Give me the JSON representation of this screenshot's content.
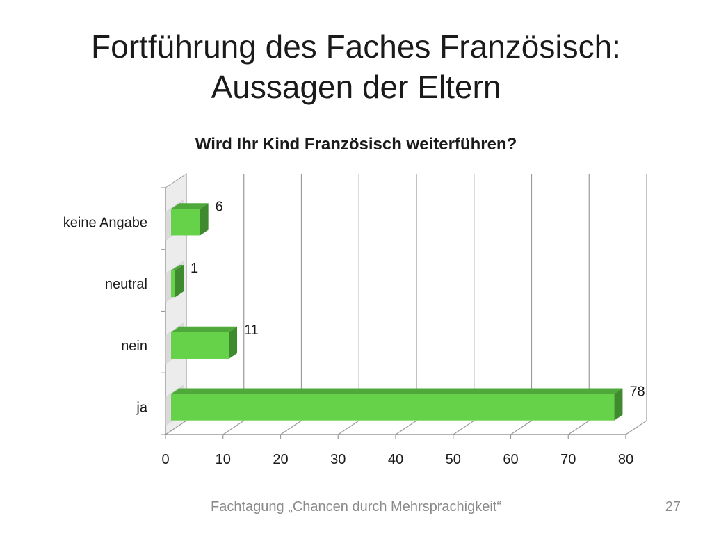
{
  "slide": {
    "title_line1": "Fortführung des Faches Französisch:",
    "title_line2": "Aussagen der Eltern",
    "footer": "Fachtagung „Chancen durch Mehrsprachigkeit“",
    "page_number": "27"
  },
  "chart_data": {
    "type": "bar",
    "orientation": "horizontal",
    "title": "Wird Ihr Kind Französisch weiterführen?",
    "categories": [
      "keine Angabe",
      "neutral",
      "nein",
      "ja"
    ],
    "values": [
      6,
      1,
      11,
      78
    ],
    "xlim": [
      0,
      80
    ],
    "xticks": [
      "0",
      "10",
      "20",
      "30",
      "40",
      "50",
      "60",
      "70",
      "80"
    ],
    "grid": true,
    "legend": "none",
    "colors": {
      "bar_front": "#66d24a",
      "bar_top": "#4ea83a",
      "bar_side": "#3f8a2e",
      "grid": "#9a9a9a"
    }
  }
}
